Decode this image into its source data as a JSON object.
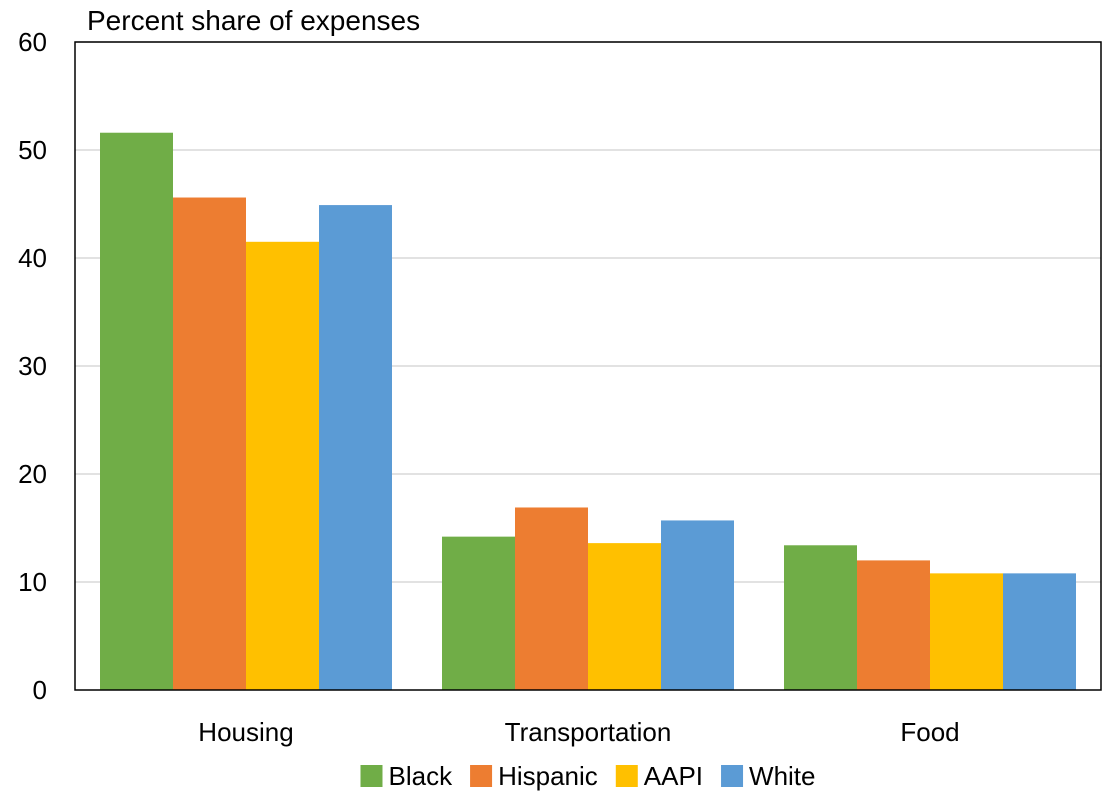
{
  "chart_data": {
    "type": "bar",
    "title": "Percent share of expenses",
    "xlabel": "",
    "ylabel": "",
    "categories": [
      "Housing",
      "Transportation",
      "Food"
    ],
    "series": [
      {
        "name": "Black",
        "color": "#70AD47",
        "values": [
          51.6,
          14.2,
          13.4
        ]
      },
      {
        "name": "Hispanic",
        "color": "#ED7D31",
        "values": [
          45.6,
          16.9,
          12.0
        ]
      },
      {
        "name": "AAPI",
        "color": "#FFC000",
        "values": [
          41.5,
          13.6,
          10.8
        ]
      },
      {
        "name": "White",
        "color": "#5B9BD5",
        "values": [
          44.9,
          15.7,
          10.8
        ]
      }
    ],
    "ylim": [
      0,
      60
    ],
    "yticks": [
      0,
      10,
      20,
      30,
      40,
      50,
      60
    ],
    "grid": true,
    "legend_position": "bottom"
  }
}
